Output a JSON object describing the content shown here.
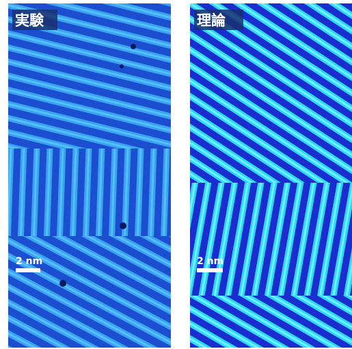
{
  "panels": [
    {
      "label": "実験",
      "scale_bar": "2 nm"
    },
    {
      "label": "理論",
      "scale_bar": "2 nm"
    }
  ]
}
